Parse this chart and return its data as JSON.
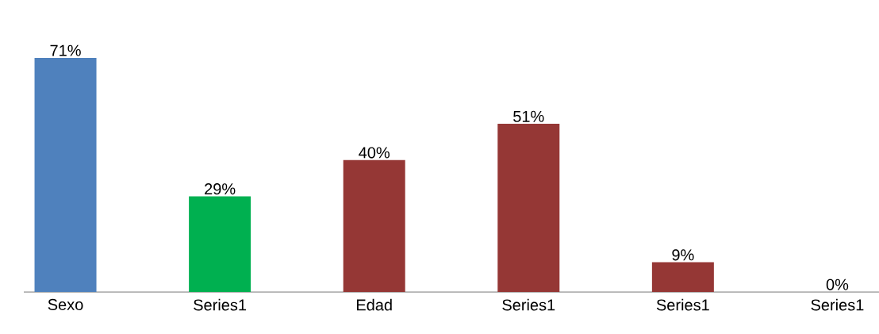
{
  "chart_data": {
    "type": "bar",
    "categories": [
      "Sexo",
      "Series1",
      "Edad",
      "Series1",
      "Series1",
      "Series1"
    ],
    "values": [
      71,
      29,
      40,
      51,
      9,
      0
    ],
    "colors": [
      "#4f81bd",
      "#00b050",
      "#953735",
      "#953735",
      "#953735",
      "#953735"
    ],
    "value_labels": [
      "71%",
      "29%",
      "40%",
      "51%",
      "9%",
      "0%"
    ],
    "grid": false,
    "tick_labels": "x"
  }
}
